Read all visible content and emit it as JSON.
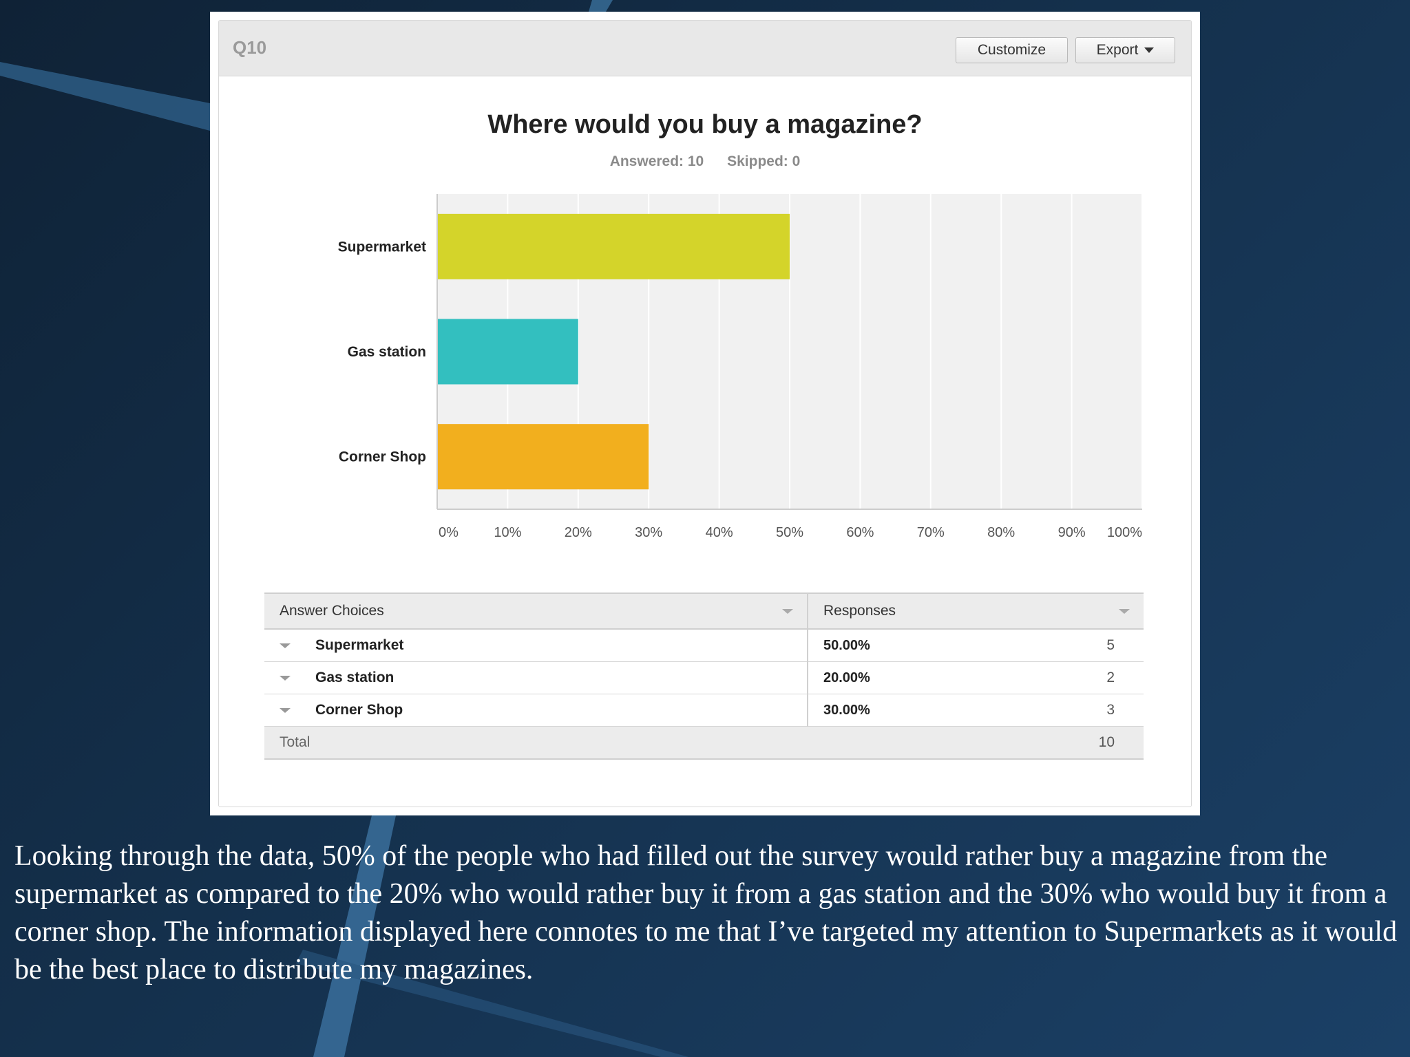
{
  "panel": {
    "question_label": "Q10",
    "customize_label": "Customize",
    "export_label": "Export",
    "title": "Where would you buy a magazine?",
    "answered": "Answered: 10",
    "skipped": "Skipped: 0"
  },
  "chart_data": {
    "type": "bar",
    "orientation": "horizontal",
    "categories": [
      "Supermarket",
      "Gas station",
      "Corner Shop"
    ],
    "values": [
      50,
      20,
      30
    ],
    "colors": [
      "#d4d42a",
      "#33bfbf",
      "#f2af1e"
    ],
    "title": "Where would you buy a magazine?",
    "xlim": [
      0,
      100
    ],
    "xticks": [
      "0%",
      "10%",
      "20%",
      "30%",
      "40%",
      "50%",
      "60%",
      "70%",
      "80%",
      "90%",
      "100%"
    ],
    "grid": true
  },
  "table": {
    "col_answer": "Answer Choices",
    "col_responses": "Responses",
    "rows": [
      {
        "label": "Supermarket",
        "pct": "50.00%",
        "count": "5"
      },
      {
        "label": "Gas station",
        "pct": "20.00%",
        "count": "2"
      },
      {
        "label": "Corner Shop",
        "pct": "30.00%",
        "count": "3"
      }
    ],
    "total_label": "Total",
    "total_count": "10"
  },
  "description": "Looking through the data, 50% of the people who had filled out the survey would rather buy a magazine from the supermarket as compared to the 20% who would rather buy it from a gas station and the 30% who would buy it from a corner shop. The information displayed here connotes to me that I’ve targeted my attention to Supermarkets as it would be the best place to distribute my magazines."
}
